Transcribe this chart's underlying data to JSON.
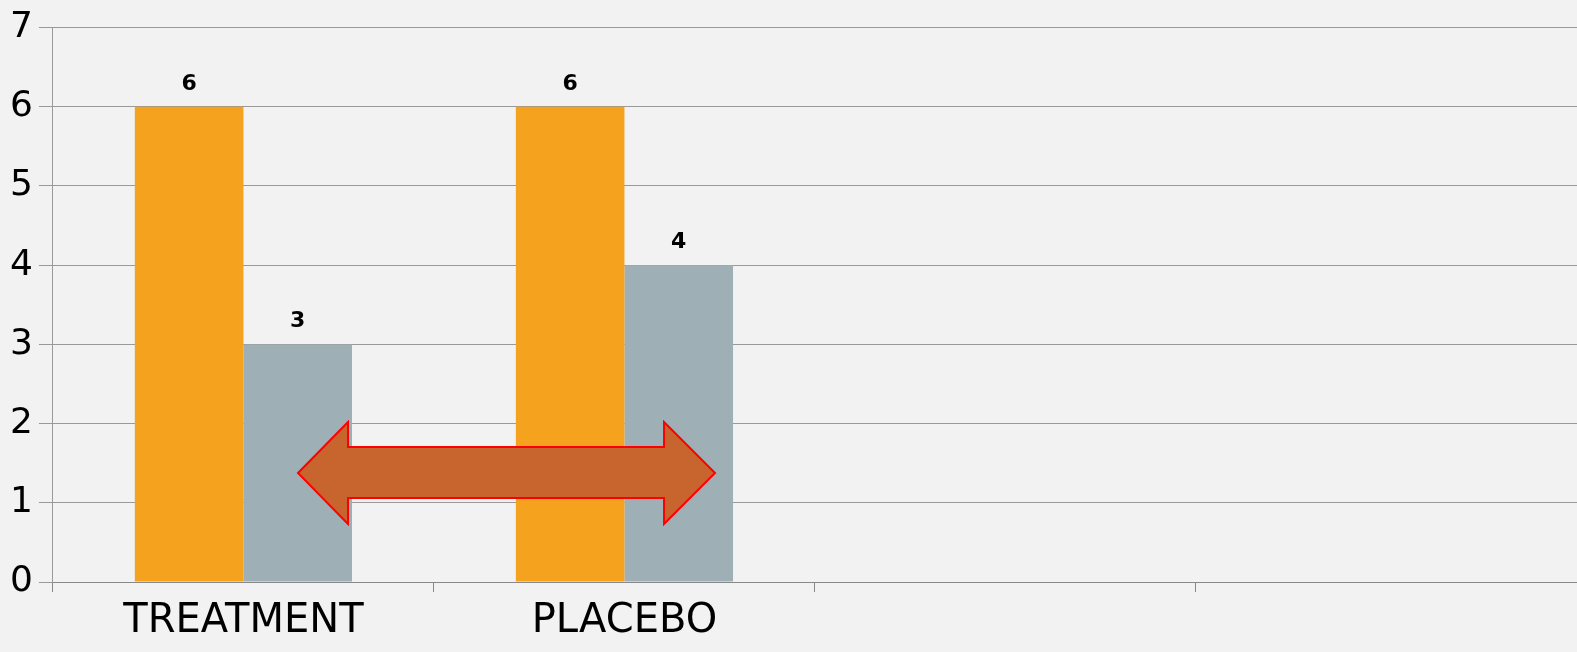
{
  "chart_data": {
    "type": "bar",
    "categories": [
      "TREATMENT",
      "PLACEBO",
      null,
      null
    ],
    "series": [
      {
        "color": "#f5a21e",
        "values": [
          6,
          6,
          null,
          null
        ]
      },
      {
        "color": "#9eb0b5",
        "values": [
          3,
          4,
          null,
          null
        ]
      }
    ],
    "ylim": [
      0,
      7
    ],
    "yticks": [
      0,
      1,
      2,
      3,
      4,
      5,
      6,
      7
    ],
    "grid": "y",
    "legend": false,
    "data_labels": true
  }
}
